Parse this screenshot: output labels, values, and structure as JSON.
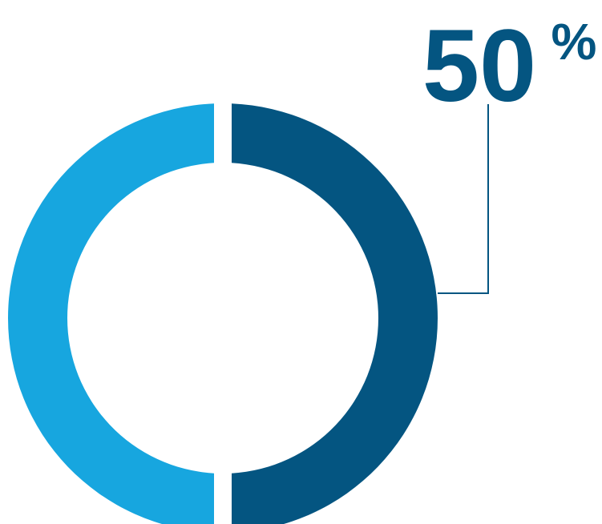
{
  "chart_data": {
    "type": "pie",
    "variant": "donut",
    "title": "",
    "slices": [
      {
        "label": "",
        "value": 50,
        "color": "#045581"
      },
      {
        "label": "",
        "value": 50,
        "color": "#17a6df"
      }
    ],
    "annotation": {
      "value": "50",
      "unit": "%",
      "color": "#045581"
    }
  }
}
